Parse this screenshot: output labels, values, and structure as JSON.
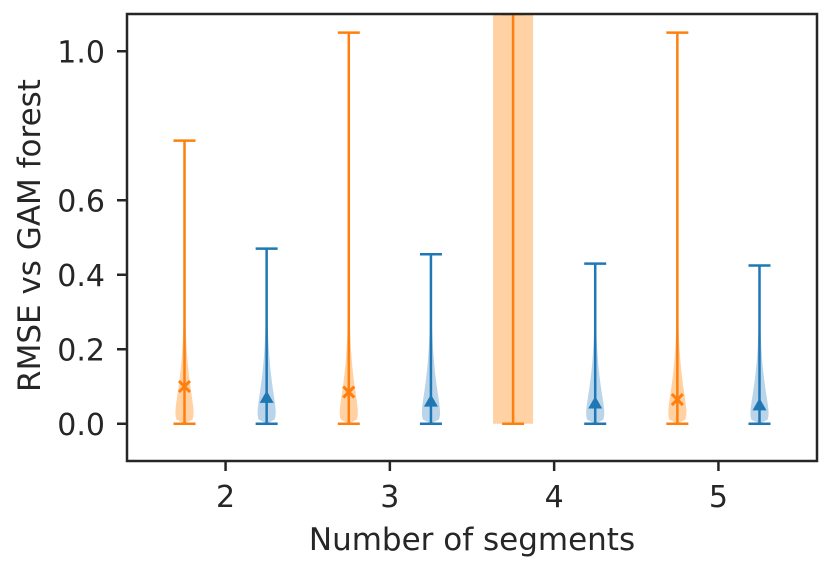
{
  "chart_data": {
    "type": "violin",
    "title": "",
    "xlabel": "Number of segments",
    "ylabel": "RMSE vs GAM forest",
    "x_ticks": [
      2,
      3,
      4,
      5
    ],
    "y_ticks": [
      "0.0",
      "0.2",
      "0.4",
      "0.6",
      "1.0"
    ],
    "y_tick_values": [
      0.0,
      0.2,
      0.4,
      0.6,
      1.0
    ],
    "ylim": [
      -0.1,
      1.1
    ],
    "xlim": [
      1.4,
      5.6
    ],
    "grid": false,
    "series": [
      {
        "color": "#ff7f0e",
        "fill": "#ffcc99",
        "marker": "x",
        "violins": [
          {
            "x": 1.75,
            "min": 0.0,
            "max": 0.76,
            "mean": 0.1
          },
          {
            "x": 2.75,
            "min": 0.0,
            "max": 1.05,
            "mean": 0.085
          },
          {
            "x": 3.75,
            "min": 0.0,
            "max": 1.1,
            "mean": null,
            "wide": true
          },
          {
            "x": 4.75,
            "min": 0.0,
            "max": 1.05,
            "mean": 0.065
          }
        ]
      },
      {
        "color": "#1f77b4",
        "fill": "#b3cfe8",
        "marker": "triangle",
        "violins": [
          {
            "x": 2.25,
            "min": 0.0,
            "max": 0.47,
            "mean": 0.07
          },
          {
            "x": 3.25,
            "min": 0.0,
            "max": 0.455,
            "mean": 0.06
          },
          {
            "x": 4.25,
            "min": 0.0,
            "max": 0.43,
            "mean": 0.055
          },
          {
            "x": 5.25,
            "min": 0.0,
            "max": 0.425,
            "mean": 0.05
          }
        ]
      }
    ]
  }
}
